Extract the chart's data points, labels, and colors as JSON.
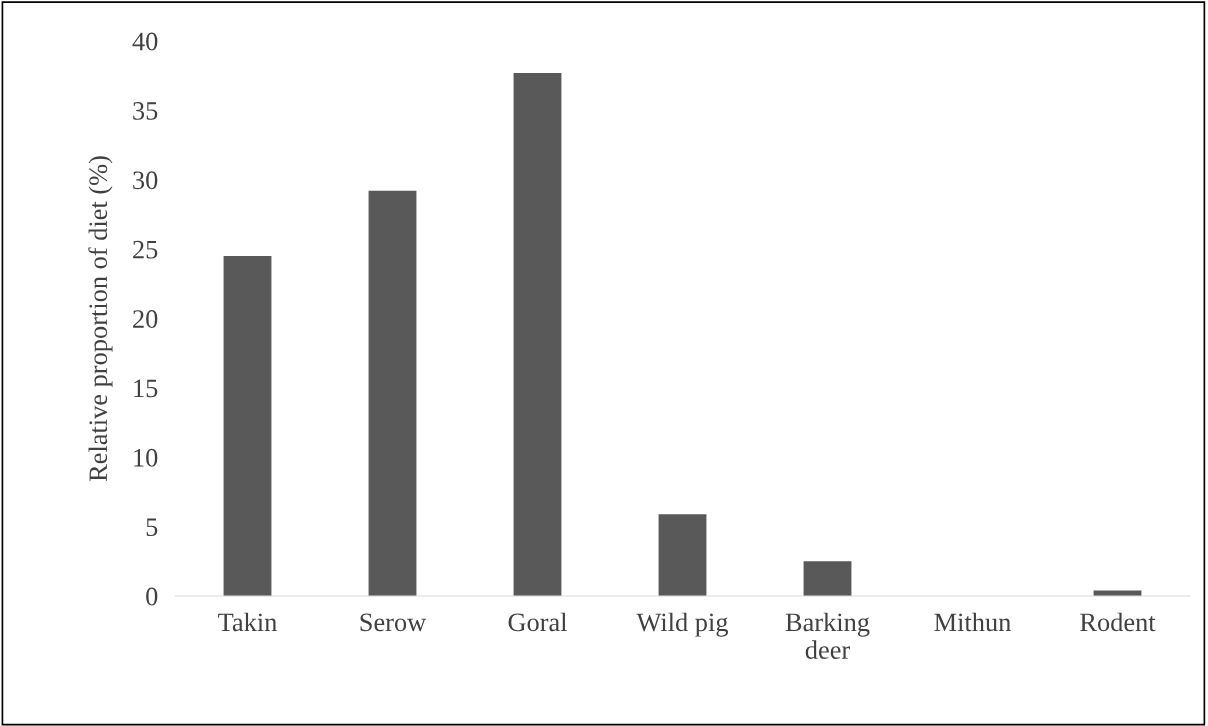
{
  "chart_data": {
    "type": "bar",
    "ylabel": "Relative proportion of diet (%)",
    "categories": [
      "Takin",
      "Serow",
      "Goral",
      "Wild pig",
      "Barking\ndeer",
      "Mithun",
      "Rodent"
    ],
    "values": [
      24.5,
      29.2,
      37.7,
      5.9,
      2.5,
      0,
      0.4
    ],
    "color": "#595959",
    "ylim": [
      0,
      40
    ],
    "yticks": [
      0,
      5,
      10,
      15,
      20,
      25,
      30,
      35,
      40
    ],
    "grid": false
  }
}
